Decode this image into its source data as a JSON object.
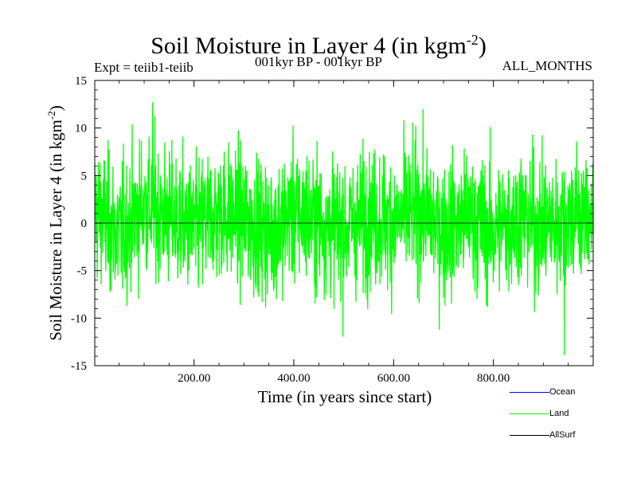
{
  "title": {
    "main": "Soil Moisture in Layer 4 (in kgm",
    "sup": "-2",
    "close": ")"
  },
  "subtitle_left": "Expt = teiib1-teiib",
  "subtitle_center": "001kyr BP - 001kyr BP",
  "subtitle_right": "ALL_MONTHS",
  "chart_data": {
    "type": "line",
    "title": "Soil Moisture in Layer 4 (in kgm-2)",
    "xlabel": "Time (in years since start)",
    "ylabel": "Soil Moisture in Layer 4 (in kgm-2)",
    "ylabel_parts": {
      "main": "Soil Moisture in Layer 4 (in kgm",
      "sup": "-2",
      "close": ")"
    },
    "xlim": [
      1,
      1000
    ],
    "ylim": [
      -15,
      15
    ],
    "x_ticks": [
      200,
      400,
      600,
      800
    ],
    "x_tick_labels": [
      "200.00",
      "400.00",
      "600.00",
      "800.00"
    ],
    "y_ticks": [
      -15,
      -10,
      -5,
      0,
      5,
      10,
      15
    ],
    "y_tick_labels": [
      "-15",
      "-10",
      "-5",
      "0",
      "5",
      "10",
      "15"
    ],
    "grid": false,
    "legend_position": "bottom-right",
    "series": [
      {
        "name": "Ocean",
        "color": "#0000ff",
        "values": []
      },
      {
        "name": "Land",
        "color": "#00ff00",
        "note_estimated": true,
        "x": [
          1,
          50,
          100,
          150,
          200,
          250,
          300,
          350,
          400,
          450,
          500,
          550,
          600,
          650,
          700,
          750,
          800,
          850,
          900,
          950,
          1000
        ],
        "values": [
          1.5,
          -1.2,
          2.0,
          0.6,
          -0.8,
          1.3,
          0.4,
          -0.9,
          1.1,
          0.2,
          -0.6,
          0.8,
          0.0,
          1.4,
          -0.7,
          0.5,
          -1.0,
          0.9,
          -0.4,
          0.6,
          1.0
        ],
        "extremes": {
          "max": 12.7,
          "max_x": 117,
          "min": -13.9,
          "min_x": 942
        }
      },
      {
        "name": "AllSurf",
        "color": "#000000",
        "values": []
      }
    ]
  }
}
